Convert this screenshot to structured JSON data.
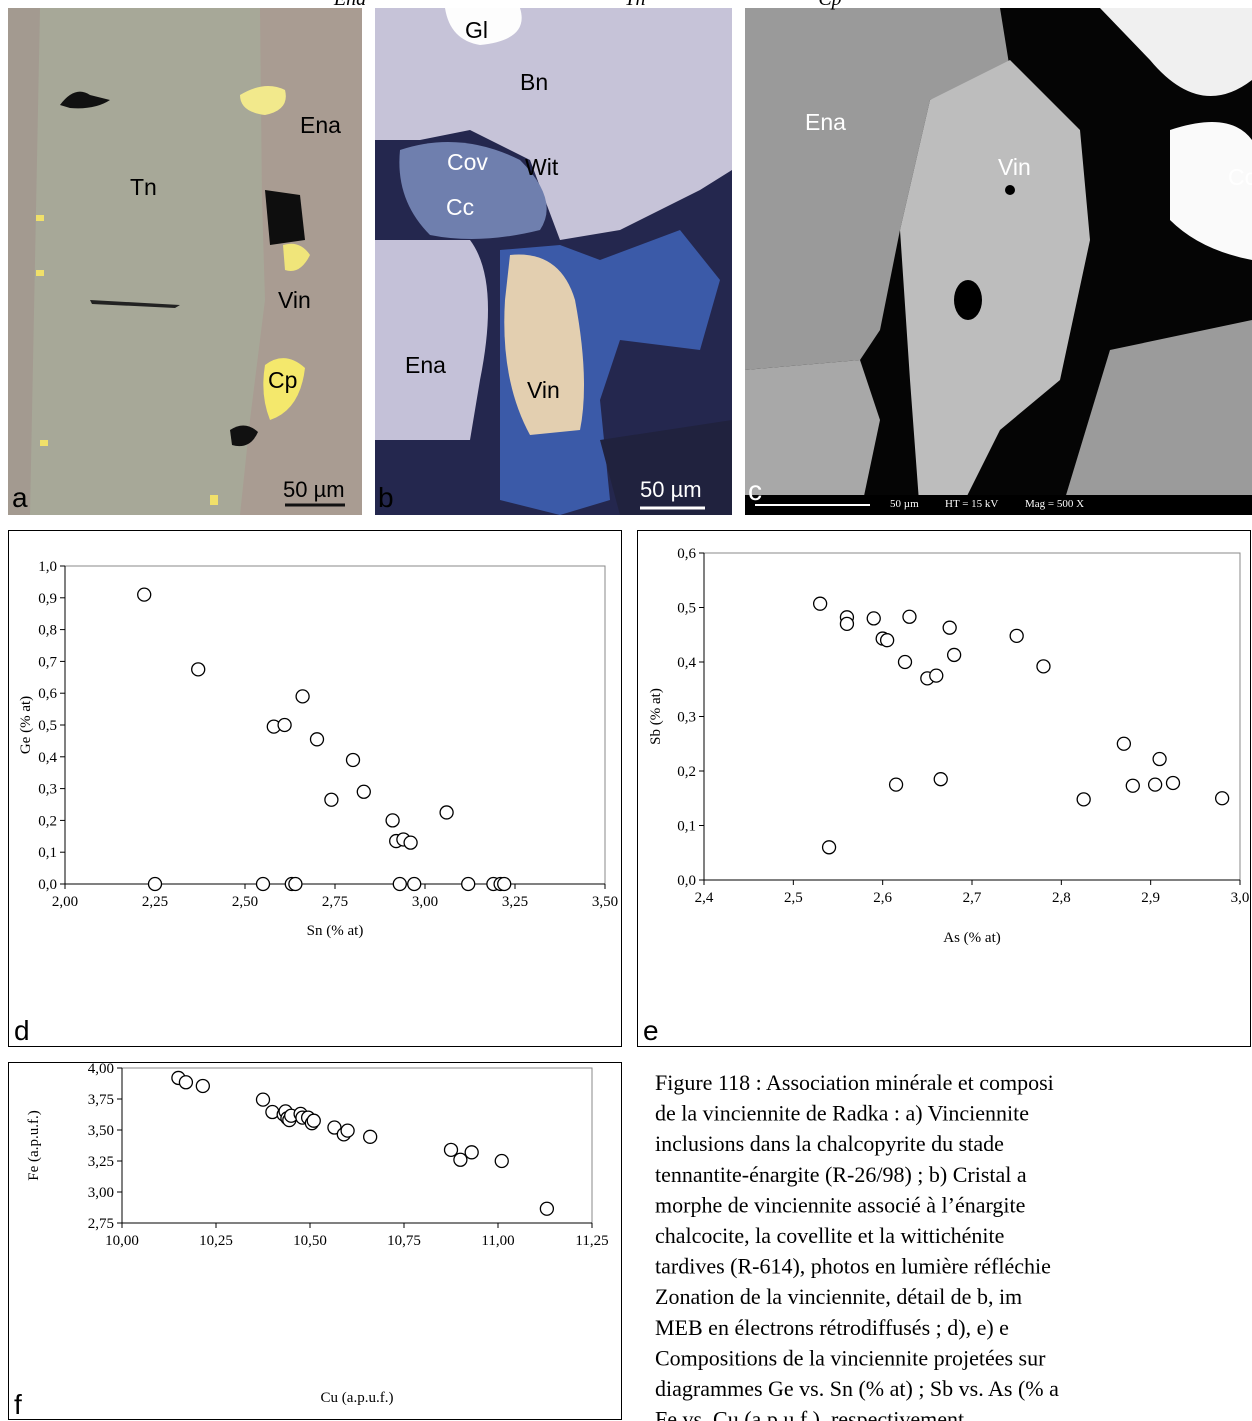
{
  "top_labels": [
    "Ena",
    "Tn",
    "Cp"
  ],
  "photos": [
    {
      "panel": "a",
      "labels": [
        "Tn",
        "Ena",
        "Vin",
        "Cp"
      ],
      "scale": "50 µm"
    },
    {
      "panel": "b",
      "labels": [
        "Gl",
        "Bn",
        "Cov",
        "Wit",
        "Cc",
        "Ena",
        "Vin"
      ],
      "scale": "50 µm"
    },
    {
      "panel": "c",
      "labels": [
        "Ena",
        "Vin",
        "Cc"
      ],
      "scale": "50 µm",
      "info": [
        "HT = 15 kV",
        "Mag = 500 X"
      ]
    }
  ],
  "chart_data": [
    {
      "type": "scatter",
      "panel_label": "d",
      "x_label": "Sn (% at)",
      "y_label": "Ge (% at)",
      "xlim": [
        2.0,
        3.5
      ],
      "xticks": [
        {
          "value": 2.0,
          "label": "2,00"
        },
        {
          "value": 2.25,
          "label": "2,25"
        },
        {
          "value": 2.5,
          "label": "2,50"
        },
        {
          "value": 2.75,
          "label": "2,75"
        },
        {
          "value": 3.0,
          "label": "3,00"
        },
        {
          "value": 3.25,
          "label": "3,25"
        },
        {
          "value": 3.5,
          "label": "3,50"
        }
      ],
      "ylim": [
        0.0,
        1.0
      ],
      "yticks": [
        {
          "value": 0.0,
          "label": "0,0"
        },
        {
          "value": 0.1,
          "label": "0,1"
        },
        {
          "value": 0.2,
          "label": "0,2"
        },
        {
          "value": 0.3,
          "label": "0,3"
        },
        {
          "value": 0.4,
          "label": "0,4"
        },
        {
          "value": 0.5,
          "label": "0,5"
        },
        {
          "value": 0.6,
          "label": "0,6"
        },
        {
          "value": 0.7,
          "label": "0,7"
        },
        {
          "value": 0.8,
          "label": "0,8"
        },
        {
          "value": 0.9,
          "label": "0,9"
        },
        {
          "value": 1.0,
          "label": "1,0"
        }
      ],
      "x": [
        2.22,
        2.37,
        2.66,
        2.58,
        2.61,
        2.7,
        2.8,
        2.74,
        2.83,
        2.91,
        2.92,
        2.94,
        2.96,
        3.06,
        2.25,
        2.55,
        2.63,
        2.64,
        2.93,
        2.97,
        3.12,
        3.19,
        3.21,
        3.22
      ],
      "values": [
        0.91,
        0.675,
        0.59,
        0.495,
        0.5,
        0.455,
        0.39,
        0.265,
        0.29,
        0.2,
        0.135,
        0.14,
        0.13,
        0.225,
        0,
        0,
        0,
        0,
        0,
        0,
        0,
        0,
        0,
        0
      ]
    },
    {
      "type": "scatter",
      "panel_label": "e",
      "x_label": "As (% at)",
      "y_label": "Sb (% at)",
      "xlim": [
        2.4,
        3.0
      ],
      "xticks": [
        {
          "value": 2.4,
          "label": "2,4"
        },
        {
          "value": 2.5,
          "label": "2,5"
        },
        {
          "value": 2.6,
          "label": "2,6"
        },
        {
          "value": 2.7,
          "label": "2,7"
        },
        {
          "value": 2.8,
          "label": "2,8"
        },
        {
          "value": 2.9,
          "label": "2,9"
        },
        {
          "value": 3.0,
          "label": "3,0"
        }
      ],
      "ylim": [
        0.0,
        0.6
      ],
      "yticks": [
        {
          "value": 0.0,
          "label": "0,0"
        },
        {
          "value": 0.1,
          "label": "0,1"
        },
        {
          "value": 0.2,
          "label": "0,2"
        },
        {
          "value": 0.3,
          "label": "0,3"
        },
        {
          "value": 0.4,
          "label": "0,4"
        },
        {
          "value": 0.5,
          "label": "0,5"
        },
        {
          "value": 0.6,
          "label": "0,6"
        }
      ],
      "x": [
        2.53,
        2.56,
        2.56,
        2.59,
        2.6,
        2.605,
        2.63,
        2.625,
        2.65,
        2.66,
        2.675,
        2.68,
        2.75,
        2.78,
        2.615,
        2.665,
        2.54,
        2.87,
        2.88,
        2.905,
        2.91,
        2.925,
        2.825,
        2.98
      ],
      "values": [
        0.507,
        0.482,
        0.47,
        0.48,
        0.443,
        0.44,
        0.483,
        0.4,
        0.37,
        0.375,
        0.463,
        0.413,
        0.448,
        0.392,
        0.175,
        0.185,
        0.06,
        0.25,
        0.173,
        0.175,
        0.222,
        0.178,
        0.148,
        0.15
      ]
    },
    {
      "type": "scatter",
      "panel_label": "f",
      "x_label": "Cu (a.p.u.f.)",
      "y_label": "Fe (a.p.u.f.)",
      "xlim": [
        10.0,
        11.25
      ],
      "xticks": [
        {
          "value": 10.0,
          "label": "10,00"
        },
        {
          "value": 10.25,
          "label": "10,25"
        },
        {
          "value": 10.5,
          "label": "10,50"
        },
        {
          "value": 10.75,
          "label": "10,75"
        },
        {
          "value": 11.0,
          "label": "11,00"
        },
        {
          "value": 11.25,
          "label": "11,25"
        }
      ],
      "ylim": [
        2.75,
        4.0
      ],
      "yticks": [
        {
          "value": 2.75,
          "label": "2,75"
        },
        {
          "value": 3.0,
          "label": "3,00"
        },
        {
          "value": 3.25,
          "label": "3,25"
        },
        {
          "value": 3.5,
          "label": "3,50"
        },
        {
          "value": 3.75,
          "label": "3,75"
        },
        {
          "value": 4.0,
          "label": "4,00"
        }
      ],
      "x": [
        10.15,
        10.17,
        10.215,
        10.375,
        10.4,
        10.43,
        10.435,
        10.44,
        10.445,
        10.45,
        10.475,
        10.48,
        10.495,
        10.505,
        10.51,
        10.565,
        10.59,
        10.6,
        10.66,
        10.875,
        10.9,
        10.93,
        11.01,
        11.13
      ],
      "values": [
        3.92,
        3.885,
        3.855,
        3.745,
        3.645,
        3.625,
        3.65,
        3.595,
        3.58,
        3.615,
        3.63,
        3.6,
        3.6,
        3.555,
        3.575,
        3.52,
        3.465,
        3.495,
        3.445,
        3.34,
        3.26,
        3.32,
        3.25,
        2.865
      ]
    }
  ],
  "caption": {
    "lines": [
      "Figure 118 : Association minérale et composi",
      "de la vinciennite de Radka : a) Vinciennite",
      "inclusions dans la chalcopyrite du stade",
      "tennantite-énargite (R-26/98) ; b) Cristal a",
      "morphe de vinciennite associé à l’énargite",
      "chalcocite, la covellite et la wittichénite",
      "tardives (R-614), photos en lumière réfléchie",
      "Zonation de la vinciennite, détail de b, im",
      "MEB en électrons rétrodiffusés ; d), e) e",
      "Compositions de la vinciennite projetées sur",
      "diagrammes Ge vs. Sn (% at) ; Sb vs. As (% a",
      "Fe vs. Cu (a.p.u.f.), respectivement"
    ]
  }
}
